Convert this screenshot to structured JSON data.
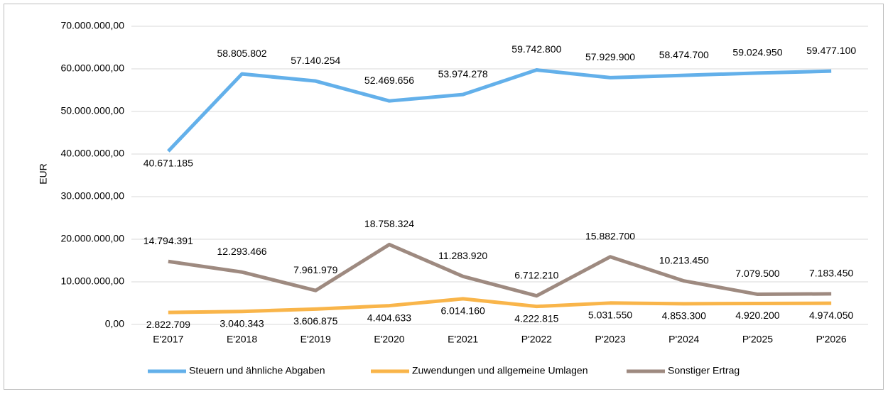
{
  "chart_data": {
    "type": "line",
    "ylabel": "EUR",
    "categories": [
      "E'2017",
      "E'2018",
      "E'2019",
      "E'2020",
      "E'2021",
      "P'2022",
      "P'2023",
      "P'2024",
      "P'2025",
      "P'2026"
    ],
    "series": [
      {
        "name": "Steuern und ähnliche Abgaben",
        "color": "#63b0ea",
        "values": [
          40671185,
          58805802,
          57140254,
          52469656,
          53974278,
          59742800,
          57929900,
          58474700,
          59024950,
          59477100
        ],
        "value_labels": [
          "40.671.185",
          "58.805.802",
          "57.140.254",
          "52.469.656",
          "53.974.278",
          "59.742.800",
          "57.929.900",
          "58.474.700",
          "59.024.950",
          "59.477.100"
        ]
      },
      {
        "name": "Zuwendungen und allgemeine Umlagen",
        "color": "#f9b54a",
        "values": [
          2822709,
          3040343,
          3606875,
          4404633,
          6014160,
          4222815,
          5031550,
          4853300,
          4920200,
          4974050
        ],
        "value_labels": [
          "2.822.709",
          "3.040.343",
          "3.606.875",
          "4.404.633",
          "6.014.160",
          "4.222.815",
          "5.031.550",
          "4.853.300",
          "4.920.200",
          "4.974.050"
        ]
      },
      {
        "name": "Sonstiger Ertrag",
        "color": "#9e8a80",
        "values": [
          14794391,
          12293466,
          7961979,
          18758324,
          11283920,
          6712210,
          15882700,
          10213450,
          7079500,
          7183450
        ],
        "value_labels": [
          "14.794.391",
          "12.293.466",
          "7.961.979",
          "18.758.324",
          "11.283.920",
          "6.712.210",
          "15.882.700",
          "10.213.450",
          "7.079.500",
          "7.183.450"
        ]
      }
    ],
    "ylim": [
      0,
      70000000
    ],
    "yticks": [
      {
        "value": 0,
        "label": "0,00"
      },
      {
        "value": 10000000,
        "label": "10.000.000,00"
      },
      {
        "value": 20000000,
        "label": "20.000.000,00"
      },
      {
        "value": 30000000,
        "label": "30.000.000,00"
      },
      {
        "value": 40000000,
        "label": "40.000.000,00"
      },
      {
        "value": 50000000,
        "label": "50.000.000,00"
      },
      {
        "value": 60000000,
        "label": "60.000.000,00"
      },
      {
        "value": 70000000,
        "label": "70.000.000,00"
      }
    ],
    "grid": true,
    "legend": "bottom"
  }
}
